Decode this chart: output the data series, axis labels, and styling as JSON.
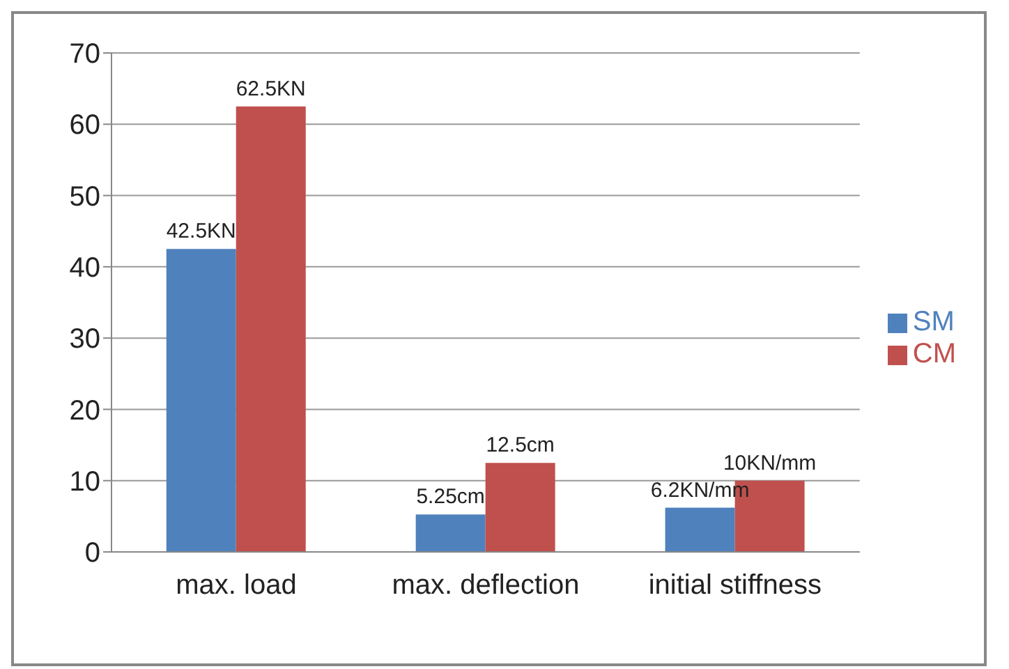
{
  "chart_data": {
    "type": "bar",
    "categories": [
      "max. load",
      "max. deflection",
      "initial stiffness"
    ],
    "series": [
      {
        "name": "SM",
        "color": "#4f81bd",
        "values": [
          42.5,
          5.25,
          6.2
        ],
        "value_labels": [
          "42.5KN",
          "5.25cm",
          "6.2KN/mm"
        ]
      },
      {
        "name": "CM",
        "color": "#c0504d",
        "values": [
          62.5,
          12.5,
          10
        ],
        "value_labels": [
          "62.5KN",
          "12.5cm",
          "10KN/mm"
        ]
      }
    ],
    "ylim": [
      0,
      70
    ],
    "yticks": [
      0,
      10,
      20,
      30,
      40,
      50,
      60,
      70
    ],
    "grid": "y",
    "legend": "right"
  }
}
